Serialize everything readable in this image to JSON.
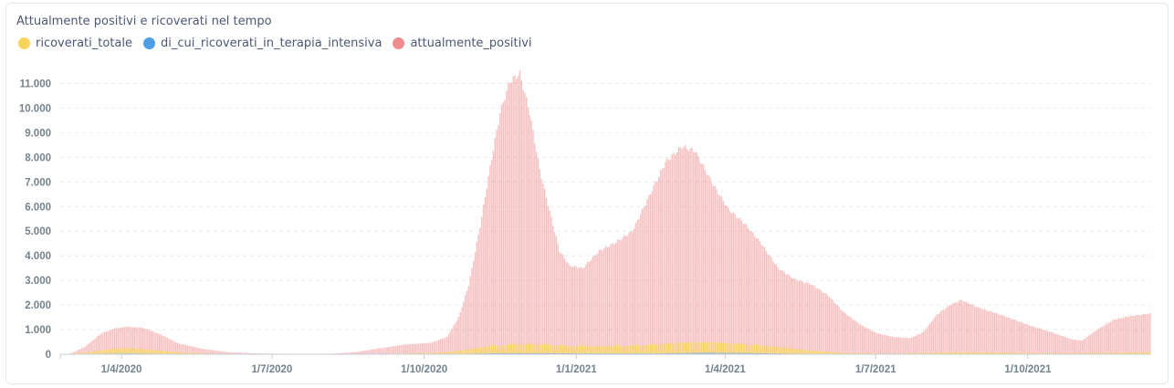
{
  "chart_data": {
    "type": "bar",
    "title": "Attualmente positivi e ricoverati nel tempo",
    "xlabel": "",
    "ylabel": "",
    "ylim": [
      0,
      11500
    ],
    "y_ticks": [
      "0",
      "1.000",
      "2.000",
      "3.000",
      "4.000",
      "5.000",
      "6.000",
      "7.000",
      "8.000",
      "9.000",
      "10.000",
      "11.000"
    ],
    "x_ticks": [
      "1/4/2020",
      "1/7/2020",
      "1/10/2020",
      "1/1/2021",
      "1/4/2021",
      "1/7/2021",
      "1/10/2021"
    ],
    "x_range": [
      "2020-02-24",
      "2021-12-14"
    ],
    "legend_position": "top-left",
    "series": [
      {
        "name": "ricoverati_totale",
        "color": "#f9d45c",
        "points": [
          [
            "2020-02-24",
            0
          ],
          [
            "2020-03-10",
            60
          ],
          [
            "2020-03-25",
            210
          ],
          [
            "2020-04-05",
            260
          ],
          [
            "2020-04-20",
            170
          ],
          [
            "2020-05-10",
            60
          ],
          [
            "2020-06-01",
            15
          ],
          [
            "2020-08-01",
            5
          ],
          [
            "2020-09-15",
            20
          ],
          [
            "2020-10-10",
            60
          ],
          [
            "2020-10-25",
            160
          ],
          [
            "2020-11-10",
            330
          ],
          [
            "2020-11-25",
            420
          ],
          [
            "2020-12-10",
            400
          ],
          [
            "2021-01-01",
            330
          ],
          [
            "2021-01-20",
            320
          ],
          [
            "2021-02-15",
            380
          ],
          [
            "2021-03-05",
            470
          ],
          [
            "2021-03-25",
            490
          ],
          [
            "2021-04-15",
            400
          ],
          [
            "2021-05-05",
            280
          ],
          [
            "2021-05-25",
            130
          ],
          [
            "2021-06-15",
            50
          ],
          [
            "2021-07-15",
            25
          ],
          [
            "2021-08-15",
            80
          ],
          [
            "2021-09-15",
            70
          ],
          [
            "2021-10-15",
            35
          ],
          [
            "2021-11-15",
            55
          ],
          [
            "2021-12-14",
            85
          ]
        ]
      },
      {
        "name": "di_cui_ricoverati_in_terapia_intensiva",
        "color": "#509ee3",
        "points": [
          [
            "2020-02-24",
            0
          ],
          [
            "2020-03-25",
            25
          ],
          [
            "2020-04-05",
            30
          ],
          [
            "2020-05-10",
            8
          ],
          [
            "2020-06-15",
            1
          ],
          [
            "2020-10-15",
            8
          ],
          [
            "2020-11-15",
            40
          ],
          [
            "2020-12-10",
            40
          ],
          [
            "2021-01-15",
            30
          ],
          [
            "2021-02-15",
            30
          ],
          [
            "2021-03-20",
            55
          ],
          [
            "2021-04-15",
            45
          ],
          [
            "2021-05-20",
            15
          ],
          [
            "2021-07-01",
            2
          ],
          [
            "2021-09-01",
            8
          ],
          [
            "2021-10-15",
            3
          ],
          [
            "2021-12-14",
            10
          ]
        ]
      },
      {
        "name": "attualmente_positivi",
        "color": "#ef8c8c",
        "points": [
          [
            "2020-02-24",
            0
          ],
          [
            "2020-03-01",
            20
          ],
          [
            "2020-03-10",
            300
          ],
          [
            "2020-03-20",
            850
          ],
          [
            "2020-03-28",
            1050
          ],
          [
            "2020-04-05",
            1120
          ],
          [
            "2020-04-15",
            1060
          ],
          [
            "2020-04-25",
            800
          ],
          [
            "2020-05-05",
            450
          ],
          [
            "2020-05-20",
            220
          ],
          [
            "2020-06-05",
            80
          ],
          [
            "2020-06-25",
            30
          ],
          [
            "2020-07-15",
            15
          ],
          [
            "2020-08-05",
            20
          ],
          [
            "2020-08-20",
            80
          ],
          [
            "2020-09-05",
            250
          ],
          [
            "2020-09-20",
            400
          ],
          [
            "2020-10-05",
            460
          ],
          [
            "2020-10-15",
            700
          ],
          [
            "2020-10-22",
            1500
          ],
          [
            "2020-10-28",
            2800
          ],
          [
            "2020-11-04",
            5200
          ],
          [
            "2020-11-10",
            7600
          ],
          [
            "2020-11-16",
            9800
          ],
          [
            "2020-11-22",
            11100
          ],
          [
            "2020-11-28",
            11400
          ],
          [
            "2020-12-04",
            9800
          ],
          [
            "2020-12-10",
            7500
          ],
          [
            "2020-12-16",
            5800
          ],
          [
            "2020-12-22",
            4200
          ],
          [
            "2020-12-28",
            3600
          ],
          [
            "2021-01-05",
            3500
          ],
          [
            "2021-01-15",
            4200
          ],
          [
            "2021-01-25",
            4550
          ],
          [
            "2021-02-04",
            5000
          ],
          [
            "2021-02-14",
            6400
          ],
          [
            "2021-02-24",
            7800
          ],
          [
            "2021-03-06",
            8450
          ],
          [
            "2021-03-14",
            8250
          ],
          [
            "2021-03-24",
            7000
          ],
          [
            "2021-04-03",
            5900
          ],
          [
            "2021-04-13",
            5300
          ],
          [
            "2021-04-23",
            4500
          ],
          [
            "2021-05-03",
            3500
          ],
          [
            "2021-05-13",
            3050
          ],
          [
            "2021-05-23",
            2850
          ],
          [
            "2021-06-02",
            2400
          ],
          [
            "2021-06-12",
            1700
          ],
          [
            "2021-06-22",
            1200
          ],
          [
            "2021-07-02",
            850
          ],
          [
            "2021-07-12",
            700
          ],
          [
            "2021-07-22",
            650
          ],
          [
            "2021-07-30",
            900
          ],
          [
            "2021-08-07",
            1600
          ],
          [
            "2021-08-15",
            2000
          ],
          [
            "2021-08-22",
            2200
          ],
          [
            "2021-09-01",
            1900
          ],
          [
            "2021-09-15",
            1600
          ],
          [
            "2021-10-01",
            1200
          ],
          [
            "2021-10-15",
            900
          ],
          [
            "2021-10-28",
            600
          ],
          [
            "2021-11-03",
            560
          ],
          [
            "2021-11-12",
            1000
          ],
          [
            "2021-11-22",
            1400
          ],
          [
            "2021-12-02",
            1550
          ],
          [
            "2021-12-14",
            1650
          ]
        ]
      }
    ]
  }
}
